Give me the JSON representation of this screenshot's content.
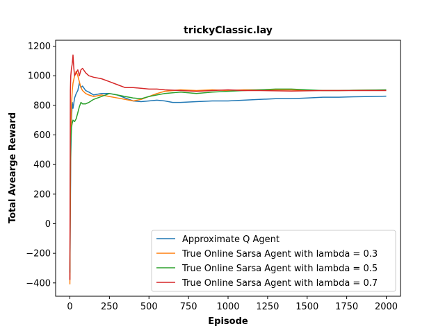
{
  "chart_data": {
    "type": "line",
    "title": "trickyClassic.lay",
    "xlabel": "Episode",
    "ylabel": "Total Avearge Reward",
    "xlim": [
      -90,
      2090
    ],
    "ylim": [
      -490,
      1240
    ],
    "xticks": [
      0,
      250,
      500,
      750,
      1000,
      1250,
      1500,
      1750,
      2000
    ],
    "xtick_labels": [
      "0",
      "250",
      "500",
      "750",
      "1000",
      "1250",
      "1500",
      "1750",
      "2000"
    ],
    "yticks": [
      -400,
      -200,
      0,
      200,
      400,
      600,
      800,
      1000,
      1200
    ],
    "ytick_labels": [
      "−400",
      "−200",
      "0",
      "200",
      "400",
      "600",
      "800",
      "1000",
      "1200"
    ],
    "grid": false,
    "legend_position": "lower-right",
    "series": [
      {
        "name": "Approximate Q Agent",
        "color": "#1f77b4",
        "x": [
          0,
          3,
          6,
          10,
          15,
          20,
          30,
          40,
          50,
          60,
          70,
          80,
          100,
          120,
          150,
          200,
          250,
          300,
          350,
          400,
          450,
          500,
          550,
          600,
          650,
          700,
          800,
          900,
          1000,
          1100,
          1200,
          1300,
          1400,
          1500,
          1600,
          1700,
          1800,
          1900,
          2000
        ],
        "y": [
          -380,
          100,
          450,
          700,
          820,
          780,
          850,
          880,
          900,
          950,
          920,
          930,
          900,
          890,
          870,
          880,
          880,
          870,
          850,
          830,
          825,
          830,
          835,
          830,
          820,
          820,
          825,
          830,
          830,
          835,
          840,
          845,
          845,
          850,
          855,
          855,
          858,
          860,
          862
        ]
      },
      {
        "name": "True Online Sarsa Agent with lambda = 0.3",
        "color": "#ff7f0e",
        "x": [
          0,
          3,
          6,
          10,
          15,
          20,
          30,
          40,
          50,
          60,
          70,
          80,
          100,
          120,
          150,
          200,
          250,
          300,
          350,
          400,
          450,
          500,
          550,
          600,
          700,
          800,
          900,
          1000,
          1100,
          1200,
          1300,
          1400,
          1500,
          1600,
          1700,
          1800,
          1900,
          2000
        ],
        "y": [
          -410,
          200,
          600,
          800,
          900,
          950,
          1000,
          1030,
          1000,
          960,
          920,
          900,
          880,
          870,
          860,
          870,
          860,
          850,
          840,
          830,
          840,
          860,
          880,
          895,
          905,
          900,
          905,
          900,
          905,
          905,
          905,
          905,
          902,
          900,
          900,
          902,
          903,
          903
        ]
      },
      {
        "name": "True Online Sarsa Agent with lambda = 0.5",
        "color": "#2ca02c",
        "x": [
          0,
          3,
          6,
          10,
          15,
          20,
          30,
          40,
          50,
          60,
          70,
          80,
          100,
          120,
          150,
          200,
          250,
          300,
          350,
          400,
          450,
          500,
          550,
          600,
          700,
          800,
          900,
          1000,
          1100,
          1200,
          1300,
          1400,
          1500,
          1600,
          1700,
          1800,
          1900,
          2000
        ],
        "y": [
          -330,
          400,
          550,
          650,
          680,
          700,
          690,
          710,
          750,
          790,
          820,
          810,
          810,
          820,
          840,
          860,
          880,
          870,
          860,
          850,
          845,
          860,
          870,
          880,
          890,
          880,
          890,
          895,
          900,
          905,
          910,
          910,
          905,
          900,
          900,
          902,
          903,
          905
        ]
      },
      {
        "name": "True Online Sarsa Agent with lambda = 0.7",
        "color": "#d62728",
        "x": [
          0,
          3,
          6,
          10,
          15,
          20,
          25,
          30,
          40,
          50,
          60,
          70,
          80,
          100,
          120,
          150,
          200,
          250,
          300,
          350,
          400,
          450,
          500,
          550,
          600,
          700,
          800,
          900,
          1000,
          1100,
          1200,
          1300,
          1400,
          1500,
          1600,
          1700,
          1800,
          1900,
          2000
        ],
        "y": [
          -380,
          900,
          1000,
          1050,
          1080,
          1140,
          1050,
          1000,
          1020,
          1040,
          1000,
          1040,
          1050,
          1020,
          1000,
          990,
          980,
          960,
          940,
          920,
          920,
          915,
          910,
          910,
          905,
          900,
          895,
          900,
          905,
          900,
          900,
          898,
          897,
          898,
          900,
          900,
          900,
          900,
          900
        ]
      }
    ]
  }
}
